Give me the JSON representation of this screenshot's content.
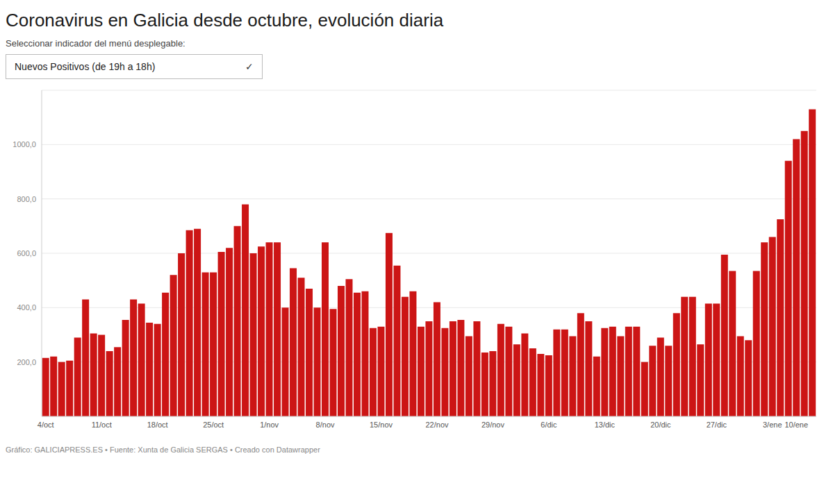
{
  "chart_data": {
    "type": "bar",
    "title": "Coronavirus en Galicia desde octubre, evolución diaria",
    "subtitle": "Seleccionar indicador del menú desplegable:",
    "annotations": [
      "Nuevos Positivos (de 19h a 18h)",
      "✓",
      "Gráfico: GALICIAPRESS.ES • Fuente: Xunta de Galicia SERGAS • Creado con Datawrapper"
    ],
    "categories": [
      "4/oct",
      null,
      null,
      null,
      null,
      null,
      null,
      "11/oct",
      null,
      null,
      null,
      null,
      null,
      null,
      "18/oct",
      null,
      null,
      null,
      null,
      null,
      null,
      "25/oct",
      null,
      null,
      null,
      null,
      null,
      null,
      "1/nov",
      null,
      null,
      null,
      null,
      null,
      null,
      "8/nov",
      null,
      null,
      null,
      null,
      null,
      null,
      "15/nov",
      null,
      null,
      null,
      null,
      null,
      null,
      "22/nov",
      null,
      null,
      null,
      null,
      null,
      null,
      "29/nov",
      null,
      null,
      null,
      null,
      null,
      null,
      "6/dic",
      null,
      null,
      null,
      null,
      null,
      null,
      "13/dic",
      null,
      null,
      null,
      null,
      null,
      null,
      "20/dic",
      null,
      null,
      null,
      null,
      null,
      null,
      "27/dic",
      null,
      null,
      null,
      null,
      null,
      null,
      "3/ene",
      null,
      null,
      "10/ene",
      null,
      null
    ],
    "values": [
      215,
      220,
      200,
      205,
      290,
      430,
      305,
      300,
      240,
      255,
      355,
      430,
      415,
      345,
      340,
      455,
      520,
      600,
      685,
      690,
      530,
      530,
      605,
      620,
      700,
      780,
      600,
      625,
      640,
      640,
      400,
      545,
      510,
      470,
      400,
      640,
      395,
      480,
      505,
      455,
      460,
      325,
      330,
      675,
      555,
      440,
      460,
      330,
      350,
      420,
      325,
      350,
      355,
      295,
      350,
      235,
      240,
      340,
      330,
      265,
      305,
      250,
      230,
      225,
      320,
      320,
      295,
      380,
      350,
      220,
      325,
      330,
      295,
      330,
      330,
      200,
      260,
      290,
      260,
      380,
      440,
      440,
      265,
      415,
      415,
      595,
      535,
      295,
      280,
      535,
      640,
      660,
      725,
      940,
      1020,
      1050,
      1130
    ],
    "color": "#cc1515",
    "ylim": [
      0,
      1200
    ],
    "yticks": [
      {
        "value": 200,
        "label": "200,0"
      },
      {
        "value": 400,
        "label": "400,0"
      },
      {
        "value": 600,
        "label": "600,0"
      },
      {
        "value": 800,
        "label": "800,0"
      },
      {
        "value": 1000,
        "label": "1000,0"
      }
    ],
    "grid": true
  }
}
